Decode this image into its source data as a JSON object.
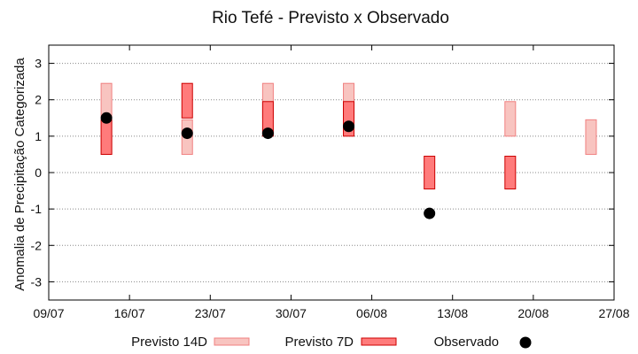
{
  "chart_data": {
    "type": "interval-scatter",
    "title": "Rio Tefé - Previsto x Observado",
    "ylabel": "Anomalia de Precipitação Categorizada",
    "xlabel": "",
    "ylim": [
      -3.5,
      3.5
    ],
    "yticks": [
      -3,
      -2,
      -1,
      0,
      1,
      2,
      3
    ],
    "xlim": [
      "2024-07-09",
      "2024-08-27"
    ],
    "xticks": [
      "2024-07-09",
      "2024-07-16",
      "2024-07-23",
      "2024-07-30",
      "2024-08-06",
      "2024-08-13",
      "2024-08-20",
      "2024-08-27"
    ],
    "xtick_labels": [
      "09/07",
      "16/07",
      "23/07",
      "30/07",
      "06/08",
      "13/08",
      "20/08",
      "27/08"
    ],
    "grid": true,
    "legend_position": "bottom",
    "series": [
      {
        "name": "Previsto 14D",
        "color": "#f8c4c0",
        "stroke": "#f08080",
        "intervals": [
          {
            "x": "2024-07-14",
            "low": 1.5,
            "high": 2.45
          },
          {
            "x": "2024-07-14",
            "low": 0.5,
            "high": 1.45
          },
          {
            "x": "2024-07-21",
            "low": 0.5,
            "high": 1.45
          },
          {
            "x": "2024-07-28",
            "low": 1.5,
            "high": 2.45
          },
          {
            "x": "2024-08-04",
            "low": 1.5,
            "high": 2.45
          },
          {
            "x": "2024-08-18",
            "low": 1.0,
            "high": 1.95
          },
          {
            "x": "2024-08-25",
            "low": 0.5,
            "high": 1.45
          }
        ]
      },
      {
        "name": "Previsto 7D",
        "color": "#ff7b7b",
        "stroke": "#cc0000",
        "intervals": [
          {
            "x": "2024-07-14",
            "low": 0.5,
            "high": 1.45
          },
          {
            "x": "2024-07-21",
            "low": 1.5,
            "high": 2.45
          },
          {
            "x": "2024-07-28",
            "low": 1.0,
            "high": 1.95
          },
          {
            "x": "2024-08-04",
            "low": 1.0,
            "high": 1.95
          },
          {
            "x": "2024-08-11",
            "low": -0.45,
            "high": 0.45
          },
          {
            "x": "2024-08-18",
            "low": -0.45,
            "high": 0.45
          }
        ]
      },
      {
        "name": "Observado",
        "color": "#000000",
        "points": [
          {
            "x": "2024-07-14",
            "y": 1.5
          },
          {
            "x": "2024-07-21",
            "y": 1.08
          },
          {
            "x": "2024-07-28",
            "y": 1.08
          },
          {
            "x": "2024-08-04",
            "y": 1.27
          },
          {
            "x": "2024-08-11",
            "y": -1.12
          }
        ]
      }
    ]
  }
}
